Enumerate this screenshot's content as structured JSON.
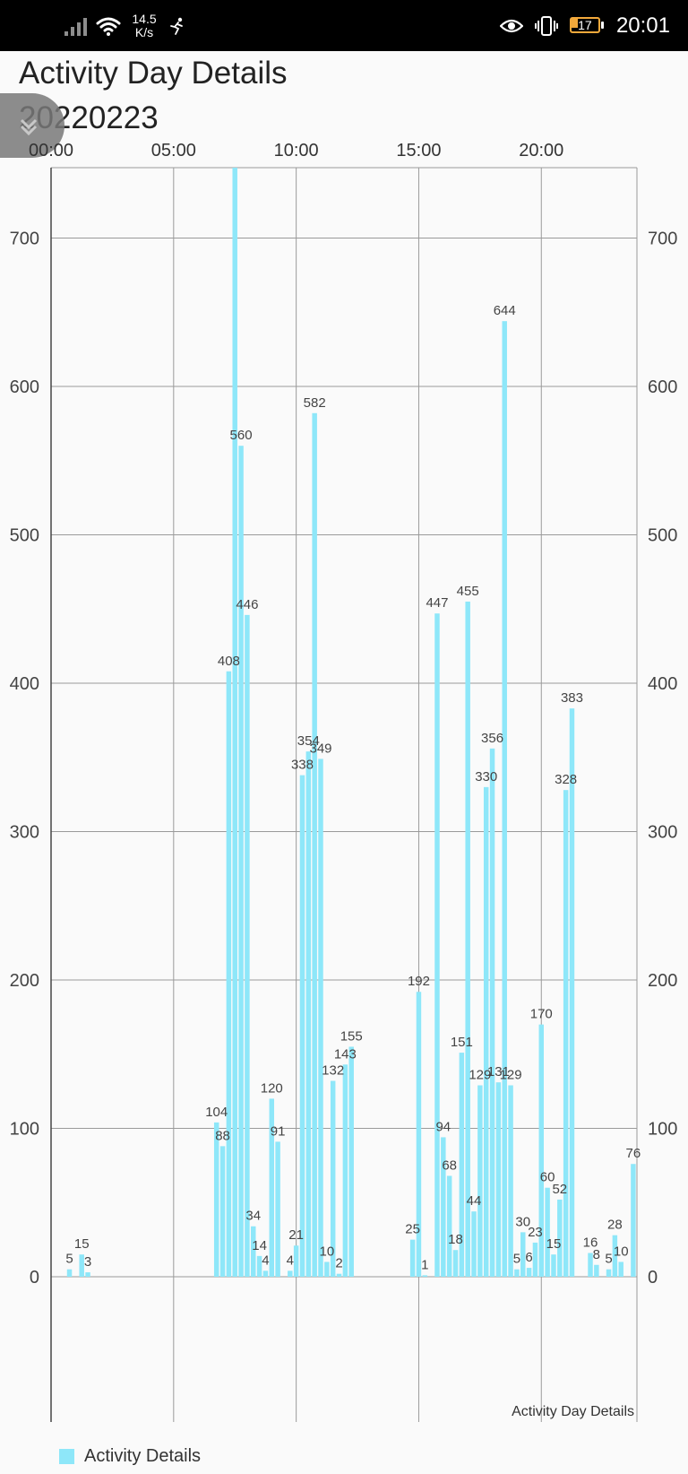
{
  "status_bar": {
    "net_speed_value": "14.5",
    "net_speed_unit": "K/s",
    "battery": "17",
    "time": "20:01"
  },
  "header": {
    "title_line1": "Activity Day Details",
    "title_line2": "20220223"
  },
  "chart_data": {
    "type": "bar",
    "description": "Activity Day Details",
    "x_ticks": [
      "00:00",
      "05:00",
      "10:00",
      "15:00",
      "20:00"
    ],
    "x_range_hours": [
      0,
      23.9
    ],
    "y_ticks": [
      0,
      100,
      200,
      300,
      400,
      500,
      600,
      700
    ],
    "ylim": [
      -100,
      750
    ],
    "bar_color": "#8ee7f9",
    "grid": true,
    "legend_position": "bottom-left",
    "series": [
      {
        "name": "Activity Details",
        "points": [
          {
            "x": 0.75,
            "y": 5,
            "label": "5"
          },
          {
            "x": 1.25,
            "y": 15,
            "label": "15"
          },
          {
            "x": 1.5,
            "y": 3,
            "label": "3"
          },
          {
            "x": 6.75,
            "y": 104,
            "label": "104"
          },
          {
            "x": 7.0,
            "y": 88,
            "label": "88"
          },
          {
            "x": 7.25,
            "y": 408,
            "label": "408"
          },
          {
            "x": 7.5,
            "y": 750,
            "label": ""
          },
          {
            "x": 7.75,
            "y": 560,
            "label": "560"
          },
          {
            "x": 8.0,
            "y": 446,
            "label": "446"
          },
          {
            "x": 8.25,
            "y": 34,
            "label": "34"
          },
          {
            "x": 8.5,
            "y": 14,
            "label": "14"
          },
          {
            "x": 8.75,
            "y": 4,
            "label": "4"
          },
          {
            "x": 9.0,
            "y": 120,
            "label": "120"
          },
          {
            "x": 9.25,
            "y": 91,
            "label": "91"
          },
          {
            "x": 9.75,
            "y": 4,
            "label": "4"
          },
          {
            "x": 10.0,
            "y": 21,
            "label": "21"
          },
          {
            "x": 10.25,
            "y": 338,
            "label": "338"
          },
          {
            "x": 10.5,
            "y": 354,
            "label": "354"
          },
          {
            "x": 10.75,
            "y": 582,
            "label": "582"
          },
          {
            "x": 11.0,
            "y": 349,
            "label": "349"
          },
          {
            "x": 11.25,
            "y": 10,
            "label": "10"
          },
          {
            "x": 11.5,
            "y": 132,
            "label": "132"
          },
          {
            "x": 11.75,
            "y": 2,
            "label": "2"
          },
          {
            "x": 12.0,
            "y": 143,
            "label": "143"
          },
          {
            "x": 12.25,
            "y": 155,
            "label": "155"
          },
          {
            "x": 14.75,
            "y": 25,
            "label": "25"
          },
          {
            "x": 15.0,
            "y": 192,
            "label": "192"
          },
          {
            "x": 15.25,
            "y": 1,
            "label": "1"
          },
          {
            "x": 15.75,
            "y": 447,
            "label": "447"
          },
          {
            "x": 16.0,
            "y": 94,
            "label": "94"
          },
          {
            "x": 16.25,
            "y": 68,
            "label": "68"
          },
          {
            "x": 16.5,
            "y": 18,
            "label": "18"
          },
          {
            "x": 16.75,
            "y": 151,
            "label": "151"
          },
          {
            "x": 17.0,
            "y": 455,
            "label": "455"
          },
          {
            "x": 17.25,
            "y": 44,
            "label": "44"
          },
          {
            "x": 17.5,
            "y": 129,
            "label": "129"
          },
          {
            "x": 17.75,
            "y": 330,
            "label": "330"
          },
          {
            "x": 18.0,
            "y": 356,
            "label": "356"
          },
          {
            "x": 18.25,
            "y": 131,
            "label": "131"
          },
          {
            "x": 18.5,
            "y": 644,
            "label": "644"
          },
          {
            "x": 18.75,
            "y": 129,
            "label": "129"
          },
          {
            "x": 19.0,
            "y": 5,
            "label": "5"
          },
          {
            "x": 19.25,
            "y": 30,
            "label": "30"
          },
          {
            "x": 19.5,
            "y": 6,
            "label": "6"
          },
          {
            "x": 19.75,
            "y": 23,
            "label": "23"
          },
          {
            "x": 20.0,
            "y": 170,
            "label": "170"
          },
          {
            "x": 20.25,
            "y": 60,
            "label": "60"
          },
          {
            "x": 20.5,
            "y": 15,
            "label": "15"
          },
          {
            "x": 20.75,
            "y": 52,
            "label": "52"
          },
          {
            "x": 21.0,
            "y": 328,
            "label": "328"
          },
          {
            "x": 21.25,
            "y": 383,
            "label": "383"
          },
          {
            "x": 22.0,
            "y": 16,
            "label": "16"
          },
          {
            "x": 22.25,
            "y": 8,
            "label": "8"
          },
          {
            "x": 22.75,
            "y": 5,
            "label": "5"
          },
          {
            "x": 23.0,
            "y": 28,
            "label": "28"
          },
          {
            "x": 23.25,
            "y": 10,
            "label": "10"
          },
          {
            "x": 23.75,
            "y": 76,
            "label": "76"
          }
        ]
      }
    ]
  },
  "icons": {
    "signal": "signal-icon",
    "wifi": "wifi-icon",
    "activity": "running-person-icon",
    "eye": "eye-icon",
    "vibrate": "vibrate-icon",
    "battery": "battery-icon",
    "float_button": "chevron-down-icon"
  }
}
